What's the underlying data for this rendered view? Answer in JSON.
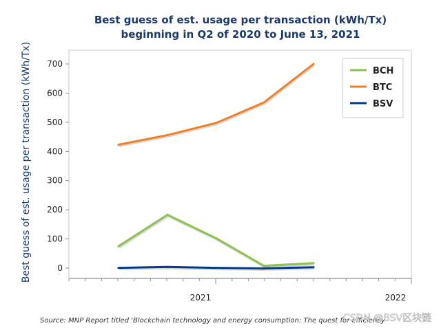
{
  "chart_data": {
    "type": "line",
    "title": [
      "Best guess of est. usage per transaction (kWh/Tx)",
      "beginning in Q2 of 2020 to June 13, 2021"
    ],
    "xlabel": "",
    "ylabel": "Best guess of est. usage per transaction (kWh/Tx)",
    "ylim": [
      -20,
      740
    ],
    "yticks": [
      0,
      100,
      200,
      300,
      400,
      500,
      600,
      700
    ],
    "x_period_labels": [
      "2021",
      "2022"
    ],
    "x_points": [
      "Q2 2020",
      "Q3 2020",
      "Q4 2020",
      "Q1 2021",
      "Q2 2021"
    ],
    "series": [
      {
        "name": "BCH",
        "color": "#8dc152",
        "values": [
          75,
          183,
          102,
          8,
          17
        ]
      },
      {
        "name": "BTC",
        "color": "#ee8228",
        "values": [
          423,
          456,
          498,
          568,
          700
        ]
      },
      {
        "name": "BSV",
        "color": "#003c85",
        "values": [
          1,
          4,
          1,
          -1,
          3
        ]
      }
    ],
    "legend": [
      "BCH",
      "BTC",
      "BSV"
    ],
    "legend_position": "top-right",
    "grid": false
  },
  "source": "Source: MNP Report titled 'Blockchain technology and energy consumption: The quest for efficiency",
  "watermark": "CSDN @BSV区块链"
}
